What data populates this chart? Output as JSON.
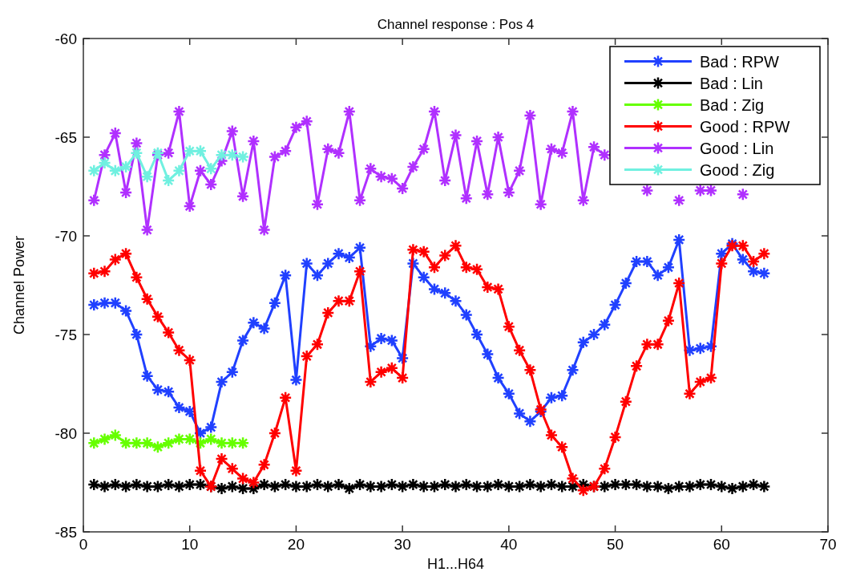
{
  "chart_data": {
    "type": "line",
    "title": "Channel response : Pos 4",
    "xlabel": "H1...H64",
    "ylabel": "Channel Power",
    "xlim": [
      0,
      70
    ],
    "xticks": [
      0,
      10,
      20,
      30,
      40,
      50,
      60,
      70
    ],
    "ylim": [
      -85,
      -60
    ],
    "yticks": [
      -85,
      -80,
      -75,
      -70,
      -65,
      -60
    ],
    "legend": "top right",
    "marker": "cross",
    "line_style": "solid",
    "grid": false,
    "series": [
      {
        "name": "Bad : RPW",
        "color": "#2040ff",
        "x": [
          1,
          2,
          3,
          4,
          5,
          6,
          7,
          8,
          9,
          10,
          11,
          12,
          13,
          14,
          15,
          16,
          17,
          18,
          19,
          20,
          21,
          22,
          23,
          24,
          25,
          26,
          27,
          28,
          29,
          30,
          31,
          32,
          33,
          34,
          35,
          36,
          37,
          38,
          39,
          40,
          41,
          42,
          43,
          44,
          45,
          46,
          47,
          48,
          49,
          50,
          51,
          52,
          53,
          54,
          55,
          56,
          57,
          58,
          59,
          60,
          61,
          62,
          63,
          64
        ],
        "values": [
          -73.5,
          -73.4,
          -73.4,
          -73.8,
          -75.0,
          -77.1,
          -77.8,
          -77.9,
          -78.7,
          -78.9,
          -80.0,
          -79.7,
          -77.4,
          -76.9,
          -75.3,
          -74.4,
          -74.7,
          -73.4,
          -72.0,
          -77.3,
          -71.4,
          -72.0,
          -71.4,
          -70.9,
          -71.1,
          -70.6,
          -75.6,
          -75.2,
          -75.3,
          -76.2,
          -71.4,
          -72.1,
          -72.7,
          -72.9,
          -73.3,
          -74.0,
          -75.0,
          -76.0,
          -77.2,
          -78.0,
          -79.0,
          -79.4,
          -78.9,
          -78.2,
          -78.1,
          -76.8,
          -75.4,
          -75.0,
          -74.5,
          -73.5,
          -72.4,
          -71.3,
          -71.3,
          -72.0,
          -71.6,
          -70.2,
          -75.8,
          -75.7,
          -75.6,
          -70.9,
          -70.4,
          -71.2,
          -71.8,
          -71.9
        ]
      },
      {
        "name": "Bad : Lin",
        "color": "#000000",
        "x": [
          1,
          2,
          3,
          4,
          5,
          6,
          7,
          8,
          9,
          10,
          11,
          12,
          13,
          14,
          15,
          16,
          17,
          18,
          19,
          20,
          21,
          22,
          23,
          24,
          25,
          26,
          27,
          28,
          29,
          30,
          31,
          32,
          33,
          34,
          35,
          36,
          37,
          38,
          39,
          40,
          41,
          42,
          43,
          44,
          45,
          46,
          47,
          48,
          49,
          50,
          51,
          52,
          53,
          54,
          55,
          56,
          57,
          58,
          59,
          60,
          61,
          62,
          63,
          64
        ],
        "values": [
          -82.6,
          -82.7,
          -82.6,
          -82.7,
          -82.6,
          -82.7,
          -82.7,
          -82.6,
          -82.7,
          -82.6,
          -82.6,
          -82.7,
          -82.8,
          -82.7,
          -82.8,
          -82.8,
          -82.6,
          -82.7,
          -82.6,
          -82.7,
          -82.7,
          -82.6,
          -82.7,
          -82.6,
          -82.8,
          -82.6,
          -82.7,
          -82.7,
          -82.6,
          -82.7,
          -82.6,
          -82.7,
          -82.7,
          -82.6,
          -82.7,
          -82.6,
          -82.7,
          -82.7,
          -82.6,
          -82.7,
          -82.7,
          -82.6,
          -82.7,
          -82.6,
          -82.7,
          -82.7,
          -82.6,
          -82.7,
          -82.7,
          -82.6,
          -82.6,
          -82.6,
          -82.7,
          -82.7,
          -82.8,
          -82.7,
          -82.7,
          -82.6,
          -82.6,
          -82.7,
          -82.8,
          -82.7,
          -82.6,
          -82.7
        ]
      },
      {
        "name": "Bad : Zig",
        "color": "#66ff00",
        "x": [
          1,
          2,
          3,
          4,
          5,
          6,
          7,
          8,
          9,
          10,
          11,
          12,
          13,
          14,
          15
        ],
        "values": [
          -80.5,
          -80.3,
          -80.1,
          -80.5,
          -80.5,
          -80.5,
          -80.7,
          -80.5,
          -80.3,
          -80.3,
          -80.5,
          -80.3,
          -80.5,
          -80.5,
          -80.5
        ]
      },
      {
        "name": "Good : RPW",
        "color": "#ff0000",
        "x": [
          1,
          2,
          3,
          4,
          5,
          6,
          7,
          8,
          9,
          10,
          11,
          12,
          13,
          14,
          15,
          16,
          17,
          18,
          19,
          20,
          21,
          22,
          23,
          24,
          25,
          26,
          27,
          28,
          29,
          30,
          31,
          32,
          33,
          34,
          35,
          36,
          37,
          38,
          39,
          40,
          41,
          42,
          43,
          44,
          45,
          46,
          47,
          48,
          49,
          50,
          51,
          52,
          53,
          54,
          55,
          56,
          57,
          58,
          59,
          60,
          61,
          62,
          63,
          64
        ],
        "values": [
          -71.9,
          -71.8,
          -71.2,
          -70.9,
          -72.1,
          -73.2,
          -74.1,
          -74.9,
          -75.8,
          -76.3,
          -81.9,
          -82.7,
          -81.3,
          -81.8,
          -82.3,
          -82.5,
          -81.6,
          -80.0,
          -78.2,
          -81.9,
          -76.1,
          -75.5,
          -73.9,
          -73.3,
          -73.3,
          -71.8,
          -77.4,
          -76.9,
          -76.7,
          -77.2,
          -70.7,
          -70.8,
          -71.6,
          -71.0,
          -70.5,
          -71.6,
          -71.7,
          -72.6,
          -72.7,
          -74.6,
          -75.8,
          -76.8,
          -78.8,
          -80.1,
          -80.7,
          -82.3,
          -82.9,
          -82.7,
          -81.8,
          -80.2,
          -78.4,
          -76.6,
          -75.5,
          -75.5,
          -74.3,
          -72.4,
          -78.0,
          -77.4,
          -77.2,
          -71.4,
          -70.5,
          -70.5,
          -71.3,
          -70.9
        ]
      },
      {
        "name": "Good : Lin",
        "color": "#b030ff",
        "x": [
          1,
          2,
          3,
          4,
          5,
          6,
          7,
          8,
          9,
          10,
          11,
          12,
          13,
          14,
          15,
          16,
          17,
          18,
          19,
          20,
          21,
          22,
          23,
          24,
          25,
          26,
          27,
          28,
          29,
          30,
          31,
          32,
          33,
          34,
          35,
          36,
          37,
          38,
          39,
          40,
          41,
          42,
          43,
          44,
          45,
          46,
          47,
          48,
          49,
          50,
          51,
          52,
          53,
          54,
          55,
          56,
          57,
          58,
          59,
          60,
          61,
          62
        ],
        "values": [
          -68.2,
          -65.9,
          -64.8,
          -67.8,
          -65.3,
          -69.7,
          -65.9,
          -65.8,
          -63.7,
          -68.5,
          -66.7,
          -67.4,
          -66.2,
          -64.7,
          -68.0,
          -65.2,
          -69.7,
          -66.0,
          -65.7,
          -64.5,
          -64.2,
          -68.4,
          -65.6,
          -65.8,
          -63.7,
          -68.2,
          -66.6,
          -67.0,
          -67.1,
          -67.6,
          -66.5,
          -65.6,
          -63.7,
          -67.2,
          -64.9,
          -68.1,
          -65.2,
          -67.9,
          -65.0,
          -67.8,
          -66.7,
          -63.9,
          -68.4,
          -65.6,
          -65.8,
          -63.7,
          -68.2,
          -65.5,
          -65.9,
          null,
          null,
          null,
          -67.7,
          null,
          null,
          -68.2,
          null,
          -67.7,
          -67.7,
          null,
          null,
          -67.9
        ]
      },
      {
        "name": "Good : Zig",
        "color": "#70f0e0",
        "x": [
          1,
          2,
          3,
          4,
          5,
          6,
          7,
          8,
          9,
          10,
          11,
          12,
          13,
          14,
          15
        ],
        "values": [
          -66.7,
          -66.3,
          -66.7,
          -66.5,
          -65.8,
          -67.0,
          -65.8,
          -67.2,
          -66.7,
          -65.7,
          -65.7,
          -66.6,
          -65.9,
          -65.9,
          -66.0
        ]
      }
    ]
  }
}
